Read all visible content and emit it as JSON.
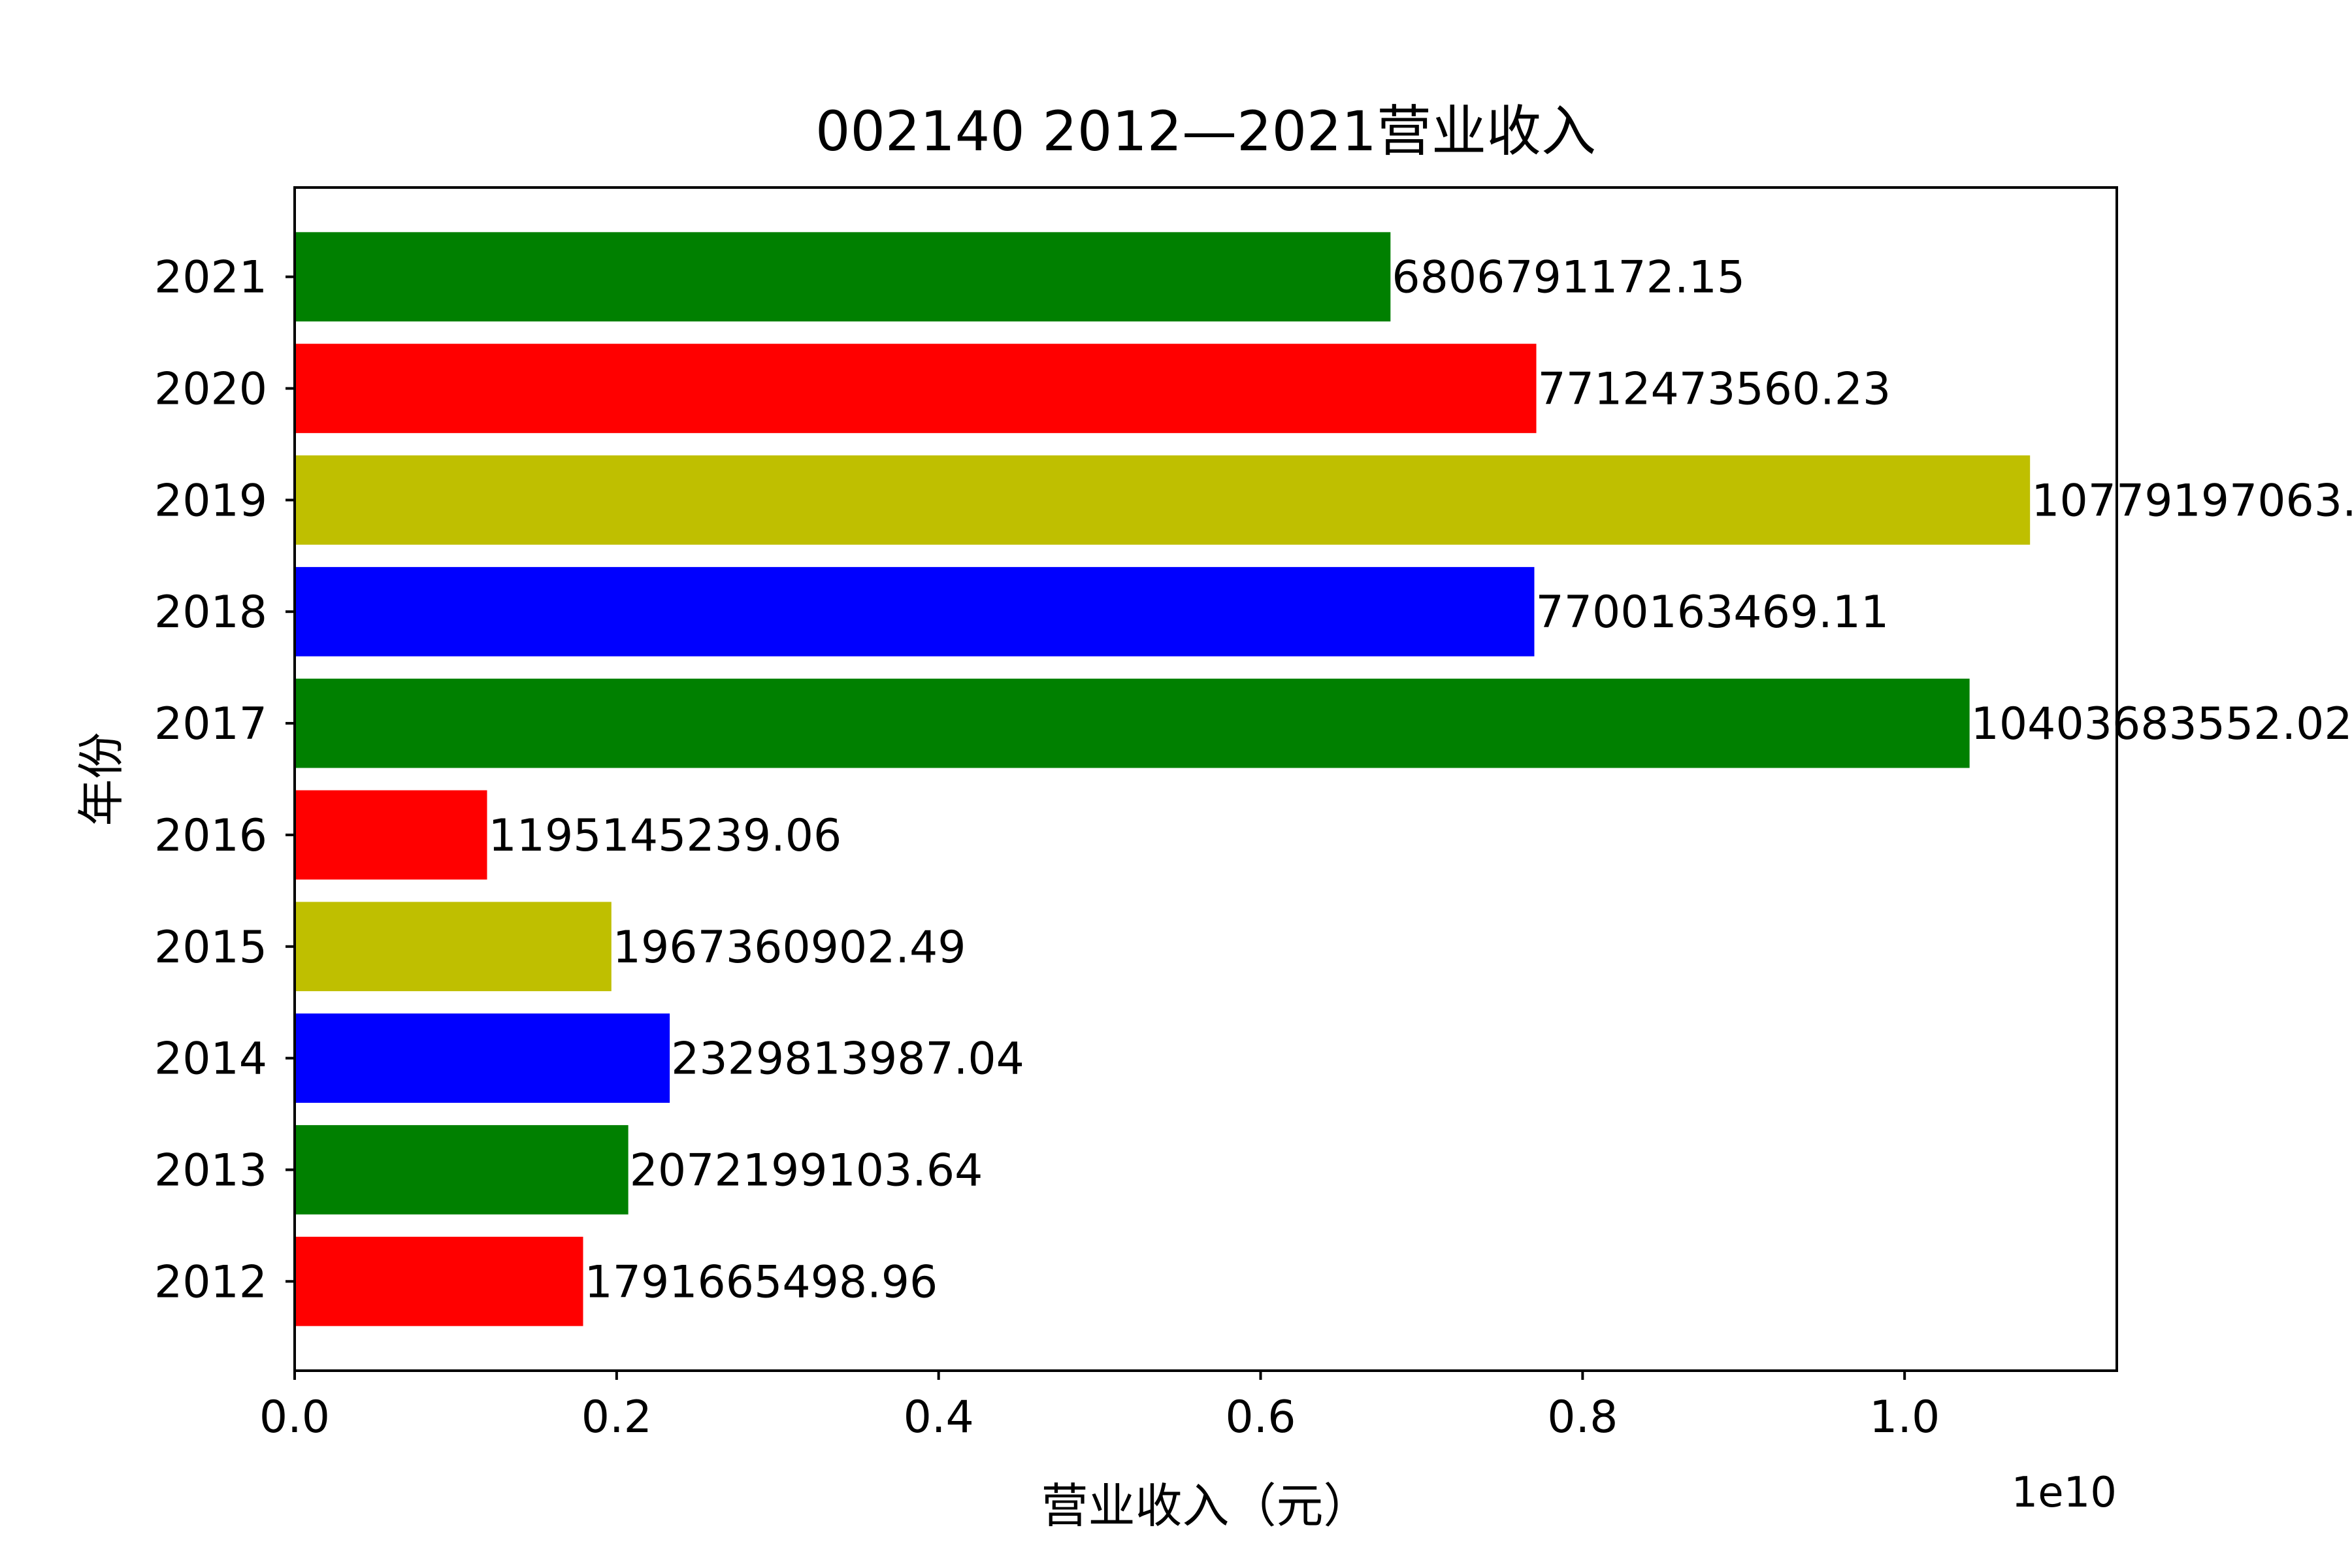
{
  "chart_data": {
    "type": "bar",
    "orientation": "horizontal",
    "title": "002140 2012—2021营业收入",
    "xlabel": "营业收入（元）",
    "ylabel": "年份",
    "x_offset_label": "1e10",
    "x_scale": 10000000000,
    "xlim": [
      0,
      11318156916.3
    ],
    "x_ticks": [
      0,
      2000000000,
      4000000000,
      6000000000,
      8000000000,
      10000000000
    ],
    "x_tick_labels": [
      "0.0",
      "0.2",
      "0.4",
      "0.6",
      "0.8",
      "1.0"
    ],
    "grid": false,
    "legend": "none",
    "categories": [
      "2012",
      "2013",
      "2014",
      "2015",
      "2016",
      "2017",
      "2018",
      "2019",
      "2020",
      "2021"
    ],
    "values": [
      1791665498.96,
      2072199103.64,
      2329813987.04,
      1967360902.49,
      1195145239.06,
      10403683552.02,
      7700163469.11,
      10779197063.0,
      7712473560.23,
      6806791172.15
    ],
    "value_labels": [
      "1791665498.96",
      "2072199103.64",
      "2329813987.04",
      "1967360902.49",
      "1195145239.06",
      "10403683552.02",
      "7700163469.11",
      "10779197063.",
      "7712473560.23",
      "6806791172.15"
    ],
    "colors": [
      "#ff0000",
      "#008000",
      "#0000ff",
      "#bfbf00",
      "#ff0000",
      "#008000",
      "#0000ff",
      "#bfbf00",
      "#ff0000",
      "#008000"
    ]
  }
}
